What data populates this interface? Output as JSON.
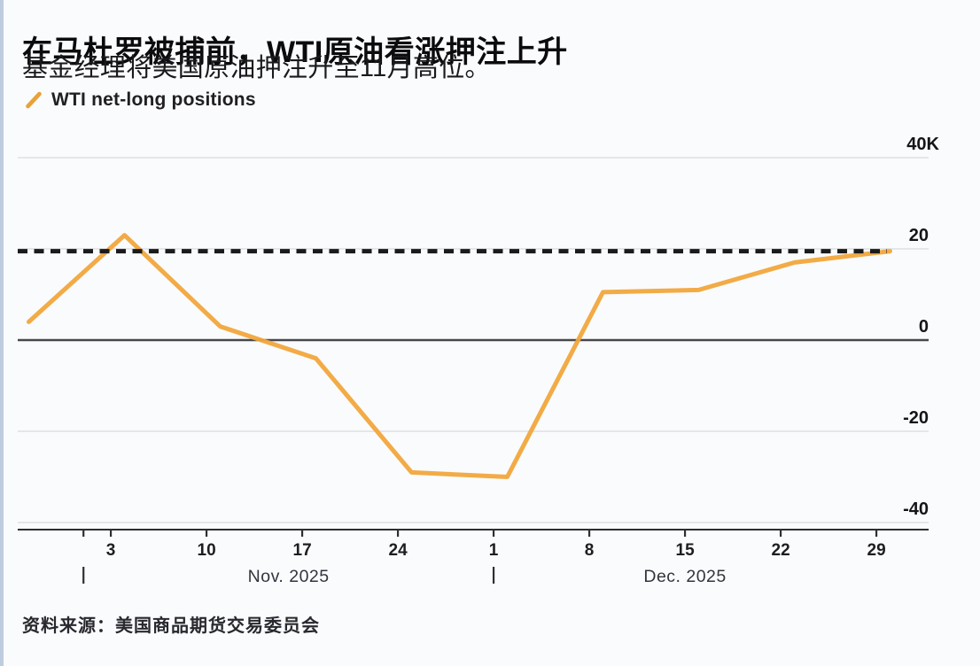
{
  "header": {
    "title": "在马杜罗被捕前，WTI原油看涨押注上升",
    "subtitle": "基金经理将美国原油押注升至11月高位。"
  },
  "legend": {
    "series_label": "WTI net-long positions"
  },
  "source": {
    "text": "资料来源：美国商品期货交易委员会"
  },
  "colors": {
    "accent_orange": "#F1A63C",
    "reference_dash": "#1B1B1B",
    "grid": "#D8DADF",
    "zero_line": "#47474D",
    "axis": "#2E2E33",
    "title_text": "#0B0B0D",
    "background": "#FAFBFC",
    "edge_strip": "#B4C2D8"
  },
  "chart_data": {
    "type": "line",
    "title": "WTI net-long positions",
    "xlabel": "",
    "ylabel": "",
    "grid": true,
    "legend_position": "top-left",
    "y_axis": {
      "side": "right",
      "values": [
        40,
        20,
        0,
        -20,
        -40
      ],
      "tick_labels": [
        "40K",
        "20",
        "0",
        "-20",
        "-40"
      ],
      "range": [
        -45,
        45
      ]
    },
    "x_axis": {
      "ticks": [
        {
          "label": "",
          "day": 4
        },
        {
          "label": "3",
          "day": 6
        },
        {
          "label": "10",
          "day": 13
        },
        {
          "label": "17",
          "day": 20
        },
        {
          "label": "24",
          "day": 27
        },
        {
          "label": "1",
          "day": 34
        },
        {
          "label": "8",
          "day": 41
        },
        {
          "label": "15",
          "day": 48
        },
        {
          "label": "22",
          "day": 55
        },
        {
          "label": "29",
          "day": 62
        }
      ],
      "month_labels": [
        {
          "label": "Nov. 2025",
          "start_day": 4,
          "end_day": 34
        },
        {
          "label": "Dec. 2025",
          "start_day": 34,
          "end_day": 62
        }
      ]
    },
    "series": [
      {
        "name": "WTI net-long positions",
        "color": "#F1A63C",
        "points": [
          {
            "date": "Oct 28",
            "day": 0,
            "value": 4
          },
          {
            "date": "Nov 4",
            "day": 7,
            "value": 23
          },
          {
            "date": "Nov 11",
            "day": 14,
            "value": 3
          },
          {
            "date": "Nov 18",
            "day": 21,
            "value": -4
          },
          {
            "date": "Nov 25",
            "day": 28,
            "value": -29
          },
          {
            "date": "Dec 2",
            "day": 35,
            "value": -30
          },
          {
            "date": "Dec 9",
            "day": 42,
            "value": 10.5
          },
          {
            "date": "Dec 16",
            "day": 49,
            "value": 11
          },
          {
            "date": "Dec 23",
            "day": 56,
            "value": 17
          },
          {
            "date": "Dec 30",
            "day": 63,
            "value": 19.5
          }
        ]
      }
    ],
    "reference_line": {
      "value": 19.5,
      "style": "dashed",
      "color": "#1B1B1B"
    }
  }
}
